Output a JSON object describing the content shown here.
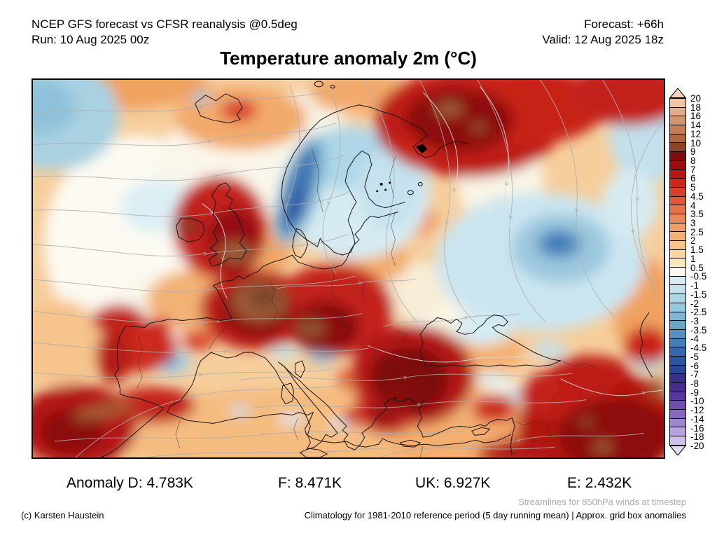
{
  "header": {
    "product": "NCEP GFS forecast vs CFSR reanalysis @0.5deg",
    "run": "Run: 10 Aug 2025 00z",
    "forecast": "Forecast: +66h",
    "valid": "Valid: 12 Aug 2025 18z"
  },
  "title": "Temperature anomaly 2m (°C)",
  "anomalies": {
    "d": "Anomaly D: 4.783K",
    "f": "F: 8.471K",
    "uk": "UK: 6.927K",
    "e": "E: 2.432K"
  },
  "notes": {
    "streamlines": "Streamlines for 850hPa winds at timestep",
    "credit": "(c) Karsten Haustein",
    "climatology": "Climatology for 1981-2010 reference period (5 day running mean) | Approx. grid box anomalies"
  },
  "colorbar": {
    "unit": "°C",
    "over_color": "#F3D3BC",
    "under_color": "#E3DBF6",
    "ticks": [
      "20",
      "18",
      "16",
      "14",
      "12",
      "10",
      "9",
      "8",
      "7",
      "6",
      "5",
      "4.5",
      "4",
      "3.5",
      "3",
      "2.5",
      "2",
      "1.5",
      "1",
      "0.5",
      "-0.5",
      "-1",
      "-1.5",
      "-2",
      "-2.5",
      "-3",
      "-3.5",
      "-4",
      "-4.5",
      "-5",
      "-6",
      "-7",
      "-8",
      "-9",
      "-10",
      "-12",
      "-14",
      "-16",
      "-18",
      "-20"
    ],
    "segment_colors": [
      "#EFC4A4",
      "#E3AB87",
      "#D4946C",
      "#C57E54",
      "#B0693F",
      "#8F4428",
      "#7C0D0D",
      "#9C0F10",
      "#B61917",
      "#CB271D",
      "#D63F2C",
      "#E05639",
      "#E96E4A",
      "#EE8758",
      "#F29C66",
      "#F5B076",
      "#F8C48A",
      "#FAD5A0",
      "#F8E6BC",
      "#FCFAEE",
      "#D8EDF3",
      "#C3E2EE",
      "#ACD5E7",
      "#96C6DE",
      "#80B6D4",
      "#6AA5CB",
      "#5591C2",
      "#427EB8",
      "#3369AC",
      "#2B55A1",
      "#274896",
      "#363089",
      "#462C90",
      "#56379D",
      "#6F4FAE",
      "#8767BE",
      "#9F85CE",
      "#B7A2DE",
      "#CEC0EB"
    ]
  }
}
